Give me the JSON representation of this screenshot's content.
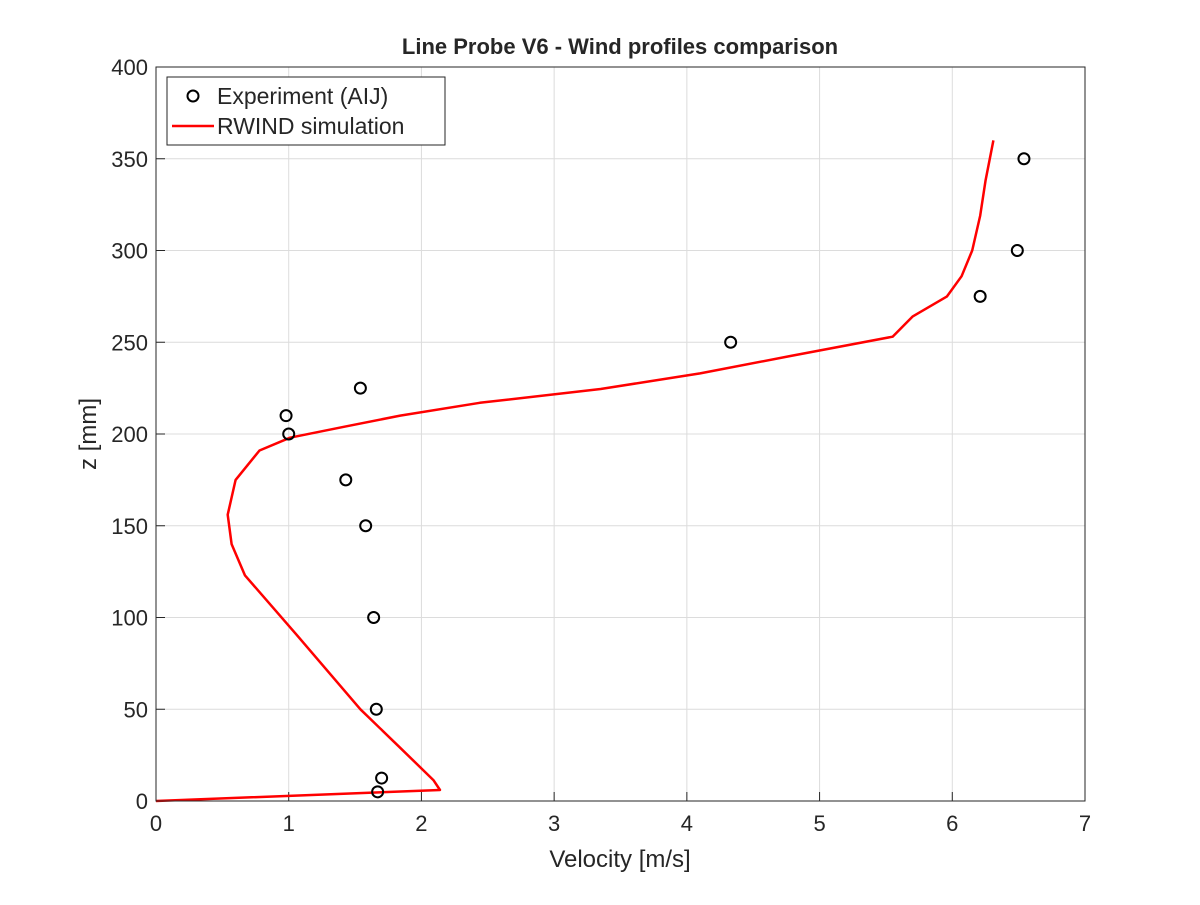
{
  "chart_data": {
    "type": "line",
    "title": "Line Probe V6 - Wind profiles comparison",
    "xlabel": "Velocity [m/s]",
    "ylabel": "z [mm]",
    "xlim": [
      0,
      7
    ],
    "ylim": [
      0,
      400
    ],
    "xticks": [
      0,
      1,
      2,
      3,
      4,
      5,
      6,
      7
    ],
    "yticks": [
      0,
      50,
      100,
      150,
      200,
      250,
      300,
      350,
      400
    ],
    "grid": true,
    "legend_position": "top-left",
    "series": [
      {
        "name": "Experiment (AIJ)",
        "kind": "scatter",
        "marker": "circle",
        "color": "#000000",
        "x": [
          1.67,
          1.7,
          1.66,
          1.64,
          1.58,
          1.43,
          1.0,
          0.98,
          1.54,
          4.33,
          6.21,
          6.49,
          6.54
        ],
        "y": [
          5,
          12.5,
          50,
          100,
          150,
          175,
          200,
          210,
          225,
          250,
          275,
          300,
          350
        ]
      },
      {
        "name": "RWIND simulation",
        "kind": "line",
        "color": "#ff0000",
        "x": [
          0,
          2.14,
          2.09,
          1.84,
          1.54,
          1.09,
          0.67,
          0.57,
          0.54,
          0.6,
          0.78,
          1.01,
          1.42,
          1.84,
          2.44,
          3.35,
          4.1,
          4.78,
          5.55,
          5.7,
          5.96,
          6.07,
          6.15,
          6.21,
          6.25,
          6.31
        ],
        "y": [
          0,
          6,
          11.4,
          29,
          50,
          88,
          123,
          140,
          156,
          175,
          191,
          198,
          204,
          210,
          217,
          224.5,
          233,
          242.5,
          253,
          264,
          275,
          286,
          300,
          319,
          338,
          360
        ]
      }
    ]
  }
}
